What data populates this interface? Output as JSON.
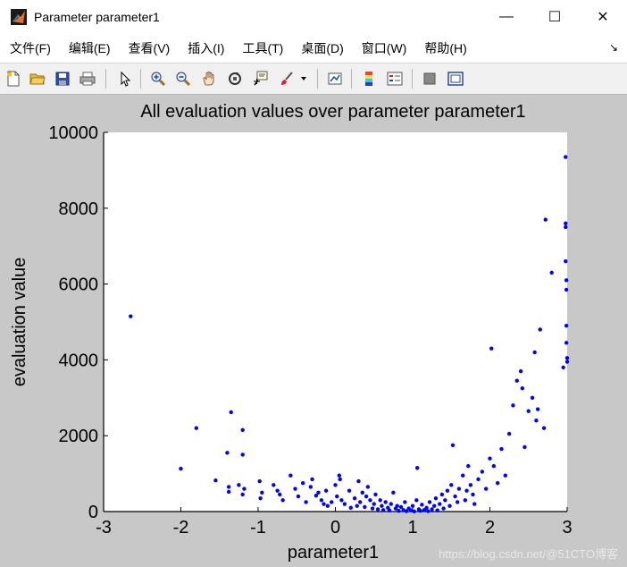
{
  "window": {
    "title": "Parameter parameter1",
    "minimize_glyph": "—",
    "maximize_glyph": "☐",
    "close_glyph": "✕"
  },
  "menubar": {
    "items": [
      "文件(F)",
      "编辑(E)",
      "查看(V)",
      "插入(I)",
      "工具(T)",
      "桌面(D)",
      "窗口(W)",
      "帮助(H)"
    ],
    "overflow_glyph": "↘"
  },
  "toolbar": {
    "icons": [
      "new-file-icon",
      "open-folder-icon",
      "save-icon",
      "print-icon",
      "select-arrow-icon",
      "zoom-in-icon",
      "zoom-out-icon",
      "pan-hand-icon",
      "rotate-3d-icon",
      "data-cursor-icon",
      "brush-icon",
      "brush-dropdown-icon",
      "link-plot-icon",
      "colorbar-icon",
      "legend-icon",
      "hide-plot-tools-icon",
      "show-plot-tools-icon"
    ]
  },
  "watermark": "https://blog.csdn.net/@51CTO博客",
  "colors": {
    "marker": "#0000ff",
    "figure_bg": "#c8c8c8",
    "axes_bg": "#ffffff"
  },
  "chart_data": {
    "type": "scatter",
    "title": "All evaluation values over parameter parameter1",
    "xlabel": "parameter1",
    "ylabel": "evaluation value",
    "xlim": [
      -3,
      3
    ],
    "ylim": [
      0,
      10000
    ],
    "xticks": [
      "-3",
      "-2",
      "-1",
      "0",
      "1",
      "2",
      "3"
    ],
    "yticks": [
      "0",
      "2000",
      "4000",
      "6000",
      "8000",
      "10000"
    ],
    "grid": false,
    "marker": "dot",
    "points": [
      [
        -2.65,
        5150
      ],
      [
        -2.0,
        1130
      ],
      [
        -1.8,
        2200
      ],
      [
        -1.55,
        820
      ],
      [
        -1.4,
        1550
      ],
      [
        -1.38,
        650
      ],
      [
        -1.35,
        2620
      ],
      [
        -1.38,
        520
      ],
      [
        -1.25,
        700
      ],
      [
        -1.2,
        2150
      ],
      [
        -1.2,
        1500
      ],
      [
        -1.18,
        600
      ],
      [
        -1.2,
        450
      ],
      [
        -0.98,
        800
      ],
      [
        -0.95,
        500
      ],
      [
        -0.97,
        350
      ],
      [
        -0.8,
        700
      ],
      [
        -0.75,
        550
      ],
      [
        -0.72,
        450
      ],
      [
        -0.68,
        300
      ],
      [
        -0.58,
        950
      ],
      [
        -0.52,
        600
      ],
      [
        -0.48,
        400
      ],
      [
        -0.42,
        750
      ],
      [
        -0.38,
        250
      ],
      [
        -0.32,
        650
      ],
      [
        -0.3,
        850
      ],
      [
        -0.25,
        420
      ],
      [
        -0.22,
        500
      ],
      [
        -0.18,
        300
      ],
      [
        -0.15,
        200
      ],
      [
        -0.12,
        550
      ],
      [
        -0.1,
        150
      ],
      [
        -0.05,
        250
      ],
      [
        0.0,
        700
      ],
      [
        0.02,
        400
      ],
      [
        0.05,
        950
      ],
      [
        0.06,
        850
      ],
      [
        0.08,
        300
      ],
      [
        0.12,
        200
      ],
      [
        0.18,
        550
      ],
      [
        0.2,
        100
      ],
      [
        0.25,
        350
      ],
      [
        0.28,
        150
      ],
      [
        0.3,
        800
      ],
      [
        0.32,
        250
      ],
      [
        0.35,
        500
      ],
      [
        0.38,
        120
      ],
      [
        0.4,
        400
      ],
      [
        0.42,
        650
      ],
      [
        0.45,
        300
      ],
      [
        0.48,
        80
      ],
      [
        0.5,
        200
      ],
      [
        0.52,
        450
      ],
      [
        0.55,
        60
      ],
      [
        0.58,
        300
      ],
      [
        0.6,
        150
      ],
      [
        0.62,
        40
      ],
      [
        0.65,
        250
      ],
      [
        0.68,
        100
      ],
      [
        0.7,
        30
      ],
      [
        0.72,
        200
      ],
      [
        0.75,
        500
      ],
      [
        0.78,
        80
      ],
      [
        0.8,
        150
      ],
      [
        0.82,
        20
      ],
      [
        0.85,
        120
      ],
      [
        0.88,
        40
      ],
      [
        0.9,
        250
      ],
      [
        0.92,
        10
      ],
      [
        0.95,
        80
      ],
      [
        0.98,
        30
      ],
      [
        1.0,
        150
      ],
      [
        1.02,
        5
      ],
      [
        1.05,
        300
      ],
      [
        1.06,
        1150
      ],
      [
        1.08,
        60
      ],
      [
        1.1,
        20
      ],
      [
        1.12,
        180
      ],
      [
        1.15,
        40
      ],
      [
        1.18,
        100
      ],
      [
        1.2,
        10
      ],
      [
        1.22,
        250
      ],
      [
        1.25,
        60
      ],
      [
        1.28,
        150
      ],
      [
        1.3,
        350
      ],
      [
        1.32,
        30
      ],
      [
        1.35,
        200
      ],
      [
        1.38,
        450
      ],
      [
        1.4,
        80
      ],
      [
        1.42,
        300
      ],
      [
        1.45,
        550
      ],
      [
        1.48,
        150
      ],
      [
        1.5,
        700
      ],
      [
        1.52,
        1750
      ],
      [
        1.55,
        400
      ],
      [
        1.58,
        250
      ],
      [
        1.6,
        600
      ],
      [
        1.65,
        950
      ],
      [
        1.68,
        300
      ],
      [
        1.7,
        550
      ],
      [
        1.72,
        1200
      ],
      [
        1.75,
        700
      ],
      [
        1.78,
        450
      ],
      [
        1.8,
        200
      ],
      [
        1.85,
        850
      ],
      [
        1.9,
        1050
      ],
      [
        1.95,
        600
      ],
      [
        2.0,
        1400
      ],
      [
        2.02,
        4300
      ],
      [
        2.05,
        1200
      ],
      [
        2.1,
        750
      ],
      [
        2.15,
        1650
      ],
      [
        2.2,
        950
      ],
      [
        2.25,
        2050
      ],
      [
        2.3,
        2800
      ],
      [
        2.35,
        3450
      ],
      [
        2.4,
        3700
      ],
      [
        2.42,
        3250
      ],
      [
        2.45,
        1700
      ],
      [
        2.5,
        2650
      ],
      [
        2.55,
        3000
      ],
      [
        2.58,
        4200
      ],
      [
        2.6,
        2400
      ],
      [
        2.62,
        2700
      ],
      [
        2.65,
        4800
      ],
      [
        2.7,
        2200
      ],
      [
        2.72,
        7700
      ],
      [
        2.8,
        6300
      ],
      [
        2.95,
        3800
      ],
      [
        2.98,
        9350
      ],
      [
        2.98,
        7600
      ],
      [
        2.98,
        7500
      ],
      [
        2.98,
        6600
      ],
      [
        2.99,
        6100
      ],
      [
        2.99,
        5850
      ],
      [
        2.99,
        4900
      ],
      [
        2.99,
        4450
      ],
      [
        3.0,
        4050
      ],
      [
        3.0,
        3950
      ]
    ]
  }
}
